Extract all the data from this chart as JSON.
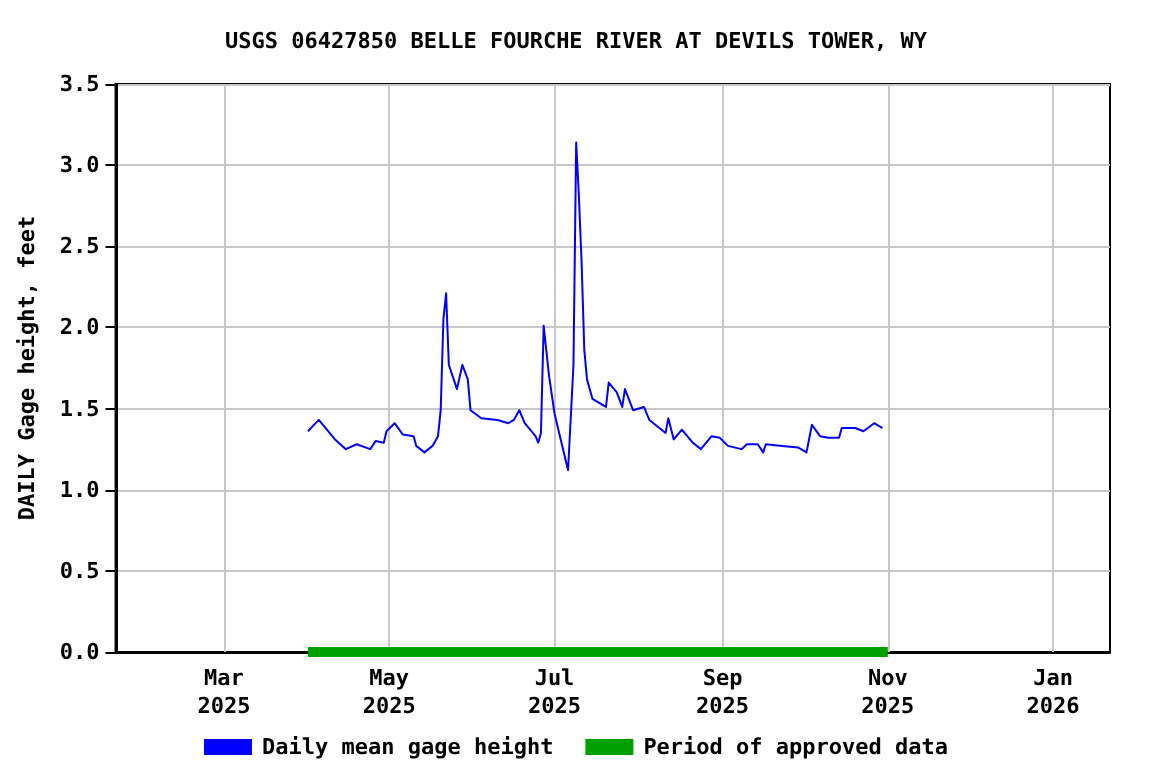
{
  "chart_data": {
    "type": "line",
    "title": "USGS 06427850 BELLE FOURCHE RIVER AT DEVILS TOWER, WY",
    "ylabel": "DAILY Gage height, feet",
    "xlim": [
      "2025-01-20",
      "2026-01-22"
    ],
    "xticks": [
      {
        "value": "2025-03-01",
        "label": "Mar\n2025"
      },
      {
        "value": "2025-05-01",
        "label": "May\n2025"
      },
      {
        "value": "2025-07-01",
        "label": "Jul\n2025"
      },
      {
        "value": "2025-09-01",
        "label": "Sep\n2025"
      },
      {
        "value": "2025-11-01",
        "label": "Nov\n2025"
      },
      {
        "value": "2026-01-01",
        "label": "Jan\n2026"
      }
    ],
    "ylim": [
      0,
      3.5
    ],
    "yticks": [
      {
        "value": 0,
        "label": "0.0"
      },
      {
        "value": 0.5,
        "label": "0.5"
      },
      {
        "value": 1,
        "label": "1.0"
      },
      {
        "value": 1.5,
        "label": "1.5"
      },
      {
        "value": 2,
        "label": "2.0"
      },
      {
        "value": 2.5,
        "label": "2.5"
      },
      {
        "value": 3,
        "label": "3.0"
      },
      {
        "value": 3.5,
        "label": "3.5"
      }
    ],
    "grid": true,
    "legend": "bottom",
    "marker": "none",
    "line_style": "solid",
    "series": [
      {
        "name": "Daily mean gage height",
        "color": "#0000ff",
        "x": [
          "2025-04-01",
          "2025-04-05",
          "2025-04-08",
          "2025-04-11",
          "2025-04-15",
          "2025-04-19",
          "2025-04-24",
          "2025-04-26",
          "2025-04-29",
          "2025-04-30",
          "2025-05-03",
          "2025-05-06",
          "2025-05-10",
          "2025-05-11",
          "2025-05-14",
          "2025-05-17",
          "2025-05-19",
          "2025-05-20",
          "2025-05-21",
          "2025-05-22",
          "2025-05-23",
          "2025-05-26",
          "2025-05-28",
          "2025-05-30",
          "2025-05-31",
          "2025-06-04",
          "2025-06-10",
          "2025-06-14",
          "2025-06-16",
          "2025-06-18",
          "2025-06-20",
          "2025-06-24",
          "2025-06-25",
          "2025-06-26",
          "2025-06-27",
          "2025-06-29",
          "2025-07-01",
          "2025-07-03",
          "2025-07-06",
          "2025-07-08",
          "2025-07-09",
          "2025-07-10",
          "2025-07-11",
          "2025-07-12",
          "2025-07-13",
          "2025-07-15",
          "2025-07-20",
          "2025-07-21",
          "2025-07-24",
          "2025-07-26",
          "2025-07-27",
          "2025-07-30",
          "2025-08-03",
          "2025-08-05",
          "2025-08-08",
          "2025-08-11",
          "2025-08-12",
          "2025-08-14",
          "2025-08-17",
          "2025-08-21",
          "2025-08-24",
          "2025-08-28",
          "2025-08-31",
          "2025-09-03",
          "2025-09-08",
          "2025-09-10",
          "2025-09-14",
          "2025-09-16",
          "2025-09-17",
          "2025-09-23",
          "2025-09-29",
          "2025-10-02",
          "2025-10-04",
          "2025-10-07",
          "2025-10-10",
          "2025-10-14",
          "2025-10-15",
          "2025-10-20",
          "2025-10-23",
          "2025-10-27",
          "2025-10-30"
        ],
        "values": [
          1.36,
          1.43,
          1.37,
          1.31,
          1.25,
          1.28,
          1.25,
          1.3,
          1.29,
          1.36,
          1.41,
          1.34,
          1.33,
          1.27,
          1.23,
          1.27,
          1.33,
          1.49,
          2.05,
          2.21,
          1.77,
          1.62,
          1.77,
          1.68,
          1.49,
          1.44,
          1.43,
          1.41,
          1.43,
          1.49,
          1.41,
          1.33,
          1.29,
          1.35,
          2.01,
          1.7,
          1.47,
          1.33,
          1.12,
          1.77,
          3.14,
          2.81,
          2.4,
          1.86,
          1.68,
          1.56,
          1.51,
          1.66,
          1.6,
          1.51,
          1.62,
          1.49,
          1.51,
          1.43,
          1.39,
          1.35,
          1.44,
          1.31,
          1.37,
          1.29,
          1.25,
          1.33,
          1.32,
          1.27,
          1.25,
          1.28,
          1.28,
          1.23,
          1.28,
          1.27,
          1.26,
          1.23,
          1.4,
          1.33,
          1.32,
          1.32,
          1.38,
          1.38,
          1.36,
          1.41,
          1.38
        ]
      },
      {
        "name": "Period of approved data",
        "color": "#00a000",
        "x": [
          "2025-04-01",
          "2025-11-01"
        ],
        "values": [
          0,
          0
        ]
      }
    ]
  }
}
